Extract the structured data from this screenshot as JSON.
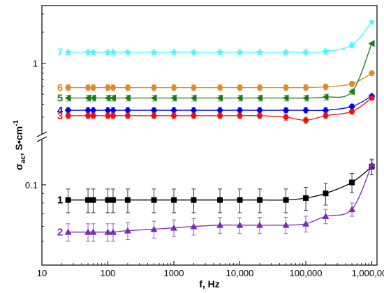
{
  "chart_data": {
    "type": "scatter",
    "title": "",
    "xlabel": "f, Hz",
    "ylabel_main": "σ",
    "ylabel_sub": "ac",
    "ylabel_rest": ", S•cm",
    "ylabel_sup": "-1",
    "x_scale": "log",
    "y_scale": "log",
    "y_axis_break": true,
    "xlim": [
      10,
      1200000
    ],
    "x_ticks": [
      {
        "value": 10,
        "label": "10"
      },
      {
        "value": 100,
        "label": "100"
      },
      {
        "value": 1000,
        "label": "1000"
      },
      {
        "value": 10000,
        "label": "10,000"
      },
      {
        "value": 100000,
        "label": "100,000"
      },
      {
        "value": 1000000,
        "label": "1,000,000"
      }
    ],
    "y_ticks": [
      {
        "value": 1,
        "label": "1"
      },
      {
        "value": 0.1,
        "label": "0.1"
      }
    ],
    "x": [
      25,
      50,
      60,
      100,
      120,
      200,
      500,
      1000,
      2000,
      5000,
      10000,
      20000,
      50000,
      100000,
      200000,
      500000,
      1000000
    ],
    "series": [
      {
        "label": "7",
        "color": "#33ffff",
        "marker": "star",
        "values": [
          1.28,
          1.28,
          1.28,
          1.28,
          1.28,
          1.28,
          1.28,
          1.28,
          1.28,
          1.28,
          1.28,
          1.28,
          1.28,
          1.28,
          1.3,
          1.5,
          2.5
        ],
        "err": 0.08
      },
      {
        "label": "6",
        "color": "#e08a2a",
        "marker": "hexagon",
        "values": [
          0.58,
          0.58,
          0.58,
          0.58,
          0.58,
          0.58,
          0.58,
          0.58,
          0.58,
          0.58,
          0.58,
          0.58,
          0.58,
          0.58,
          0.59,
          0.63,
          0.8
        ],
        "err": 0.04
      },
      {
        "label": "5",
        "color": "#1a7a1a",
        "marker": "triangle-left",
        "values": [
          0.46,
          0.46,
          0.46,
          0.46,
          0.46,
          0.46,
          0.46,
          0.46,
          0.46,
          0.46,
          0.46,
          0.46,
          0.46,
          0.46,
          0.47,
          0.53,
          1.55
        ],
        "err": 0.03
      },
      {
        "label": "4",
        "color": "#0000ee",
        "marker": "diamond",
        "values": [
          0.35,
          0.35,
          0.35,
          0.35,
          0.35,
          0.35,
          0.35,
          0.35,
          0.35,
          0.35,
          0.35,
          0.35,
          0.35,
          0.35,
          0.35,
          0.38,
          0.48
        ],
        "err": 0.02
      },
      {
        "label": "3",
        "color": "#ee1111",
        "marker": "circle",
        "values": [
          0.31,
          0.31,
          0.31,
          0.31,
          0.31,
          0.31,
          0.31,
          0.31,
          0.31,
          0.31,
          0.31,
          0.31,
          0.3,
          0.28,
          0.31,
          0.34,
          0.46
        ],
        "err": 0.02
      },
      {
        "label": "1",
        "color": "#000000",
        "marker": "square",
        "values": [
          0.083,
          0.083,
          0.083,
          0.083,
          0.083,
          0.083,
          0.083,
          0.083,
          0.083,
          0.083,
          0.083,
          0.083,
          0.083,
          0.085,
          0.09,
          0.103,
          0.125
        ],
        "err": 0.012
      },
      {
        "label": "2",
        "color": "#7a2ab5",
        "marker": "triangle-up",
        "values": [
          0.056,
          0.056,
          0.056,
          0.056,
          0.056,
          0.057,
          0.058,
          0.059,
          0.06,
          0.061,
          0.061,
          0.061,
          0.061,
          0.062,
          0.068,
          0.074,
          0.128
        ],
        "err": 0.006
      }
    ]
  }
}
